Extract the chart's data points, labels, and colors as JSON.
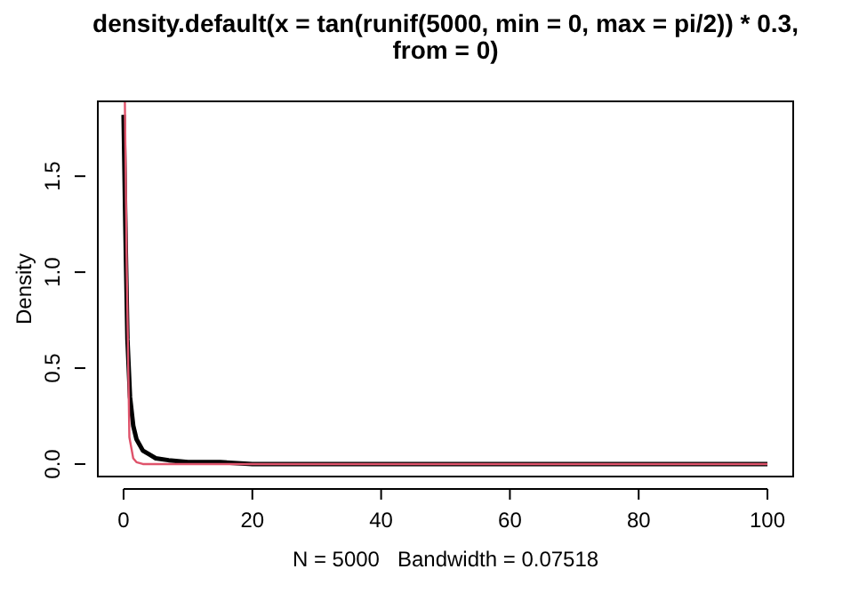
{
  "chart_data": {
    "type": "line",
    "title": "density.default(x = tan(runif(5000, min = 0, max = pi/2)) * 0.3,\nfrom = 0)",
    "ylabel": "Density",
    "annotations": [
      "N = 5000   Bandwidth = 0.07518"
    ],
    "xlim": [
      -4,
      104
    ],
    "ylim": [
      -0.065,
      1.89
    ],
    "xticks": [
      0,
      20,
      40,
      60,
      80,
      100
    ],
    "yticks": [
      {
        "value": 0,
        "label": "0.0"
      },
      0.5,
      {
        "value": 1,
        "label": "1.0"
      },
      1.5
    ],
    "grid": false,
    "legend": false,
    "marker": "none",
    "line_style": "solid",
    "series": [
      {
        "color": "#000000",
        "x": [
          0,
          0.3,
          0.6,
          1,
          1.5,
          2,
          3,
          4,
          5,
          7,
          10,
          15,
          20,
          30,
          50,
          100
        ],
        "values": [
          1.82,
          1.2,
          0.65,
          0.35,
          0.2,
          0.13,
          0.07,
          0.05,
          0.03,
          0.02,
          0.01,
          0.01,
          0,
          0,
          0,
          0
        ]
      },
      {
        "color": "#df536b",
        "x": [
          0.2,
          0.5,
          0.9,
          1.5,
          2,
          3,
          5,
          10,
          100
        ],
        "values": [
          1.89,
          1.0,
          0.14,
          0.03,
          0.01,
          0,
          0,
          0,
          0
        ]
      }
    ]
  }
}
